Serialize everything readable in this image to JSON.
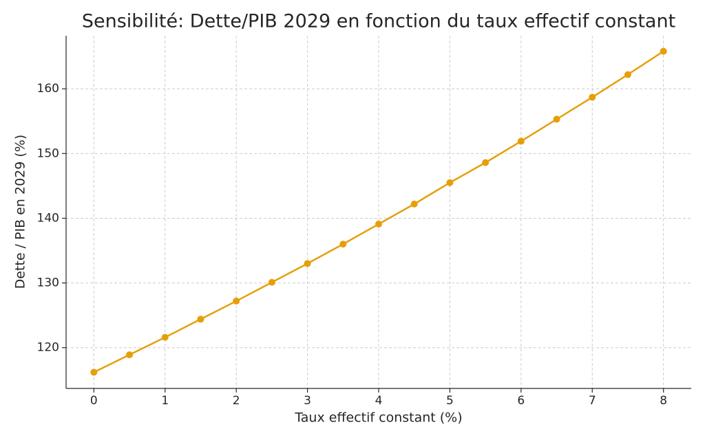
{
  "chart_data": {
    "type": "line",
    "title": "Sensibilité: Dette/PIB 2029 en fonction du taux effectif constant",
    "x_label": "Taux effectif constant (%)",
    "y_label": "Dette / PIB en 2029 (%)",
    "x": [
      0,
      0.5,
      1,
      1.5,
      2,
      2.5,
      3,
      3.5,
      4,
      4.5,
      5,
      5.5,
      6,
      6.5,
      7,
      7.5,
      8
    ],
    "values": [
      116.2,
      118.9,
      121.6,
      124.4,
      127.2,
      130.1,
      133.0,
      136.0,
      139.1,
      142.2,
      145.5,
      148.6,
      151.9,
      155.3,
      158.7,
      162.2,
      165.8
    ],
    "color": "#e69f0a",
    "xlim": [
      -0.39,
      8.39
    ],
    "ylim": [
      113.7,
      168.2
    ],
    "xticks": [
      0,
      1,
      2,
      3,
      4,
      5,
      6,
      7,
      8
    ],
    "yticks": [
      120,
      130,
      140,
      150,
      160
    ],
    "grid": true
  }
}
